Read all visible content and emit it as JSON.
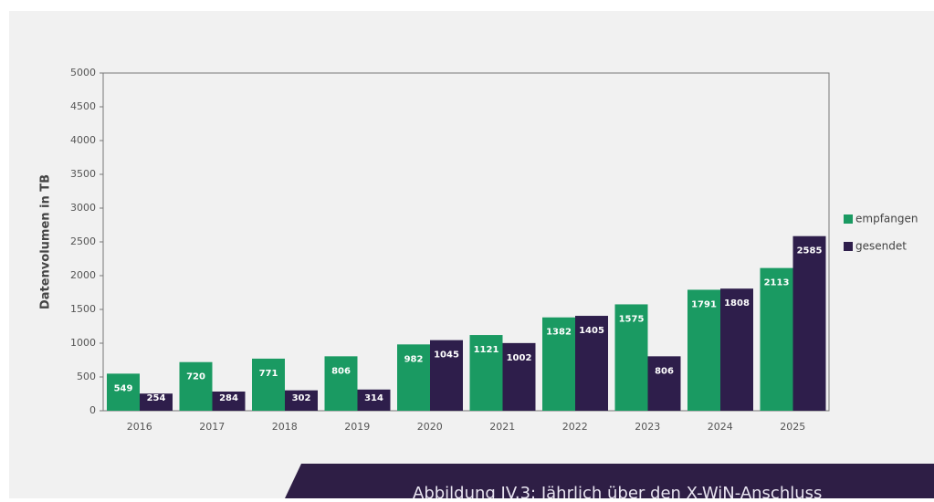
{
  "chart_data": {
    "type": "bar",
    "y_label": "Datenvolumen in TB",
    "categories": [
      "2016",
      "2017",
      "2018",
      "2019",
      "2020",
      "2021",
      "2022",
      "2023",
      "2024",
      "2025"
    ],
    "series": [
      {
        "name": "empfangen",
        "color": "#1a9a62",
        "values": [
          549,
          720,
          771,
          806,
          982,
          1121,
          1382,
          1575,
          1791,
          2113
        ]
      },
      {
        "name": "gesendet",
        "color": "#2e1e4b",
        "values": [
          254,
          284,
          302,
          314,
          1045,
          1002,
          1405,
          806,
          1808,
          2585
        ]
      }
    ],
    "ylim": [
      0,
      5000
    ],
    "yticks": [
      0,
      500,
      1000,
      1500,
      2000,
      2500,
      3000,
      3500,
      4000,
      4500,
      5000
    ],
    "caption": "Abbildung IV.3: Jährlich über den X-WiN-Anschluss"
  }
}
